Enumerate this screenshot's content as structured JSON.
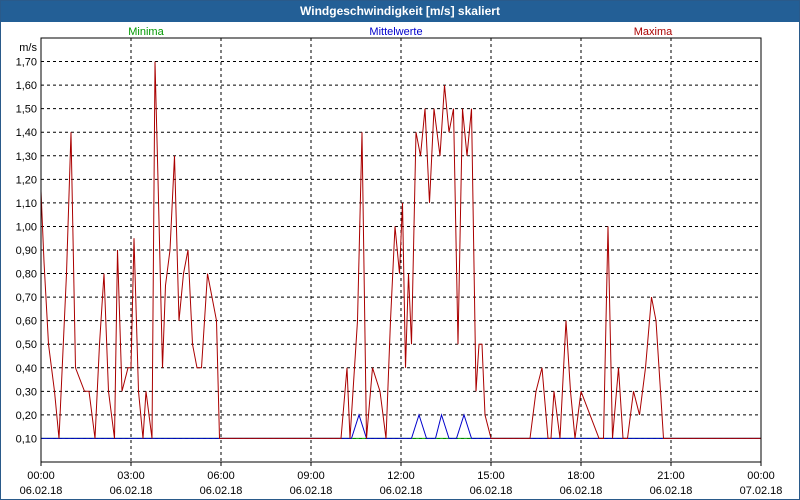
{
  "window": {
    "title": "Windgeschwindigkeit [m/s] skaliert"
  },
  "colors": {
    "minima": "#009900",
    "mittel": "#0000cc",
    "maxima": "#aa0000",
    "title_bar": "#235f96"
  },
  "chart_data": {
    "type": "line",
    "title": "Windgeschwindigkeit [m/s] skaliert",
    "ylabel": "m/s",
    "xlabel": "",
    "ylim": [
      0.0,
      1.8
    ],
    "xlim_hours": [
      0,
      24
    ],
    "yticks": [
      "0,10",
      "0,20",
      "0,30",
      "0,40",
      "0,50",
      "0,60",
      "0,70",
      "0,80",
      "0,90",
      "1,00",
      "1,10",
      "1,20",
      "1,30",
      "1,40",
      "1,50",
      "1,60",
      "1,70"
    ],
    "ytick_values": [
      0.1,
      0.2,
      0.3,
      0.4,
      0.5,
      0.6,
      0.7,
      0.8,
      0.9,
      1.0,
      1.1,
      1.2,
      1.3,
      1.4,
      1.5,
      1.6,
      1.7
    ],
    "xticks": [
      {
        "time": "00:00",
        "date": "06.02.18"
      },
      {
        "time": "03:00",
        "date": "06.02.18"
      },
      {
        "time": "06:00",
        "date": "06.02.18"
      },
      {
        "time": "09:00",
        "date": "06.02.18"
      },
      {
        "time": "12:00",
        "date": "06.02.18"
      },
      {
        "time": "15:00",
        "date": "06.02.18"
      },
      {
        "time": "18:00",
        "date": "06.02.18"
      },
      {
        "time": "21:00",
        "date": "06.02.18"
      },
      {
        "time": "00:00",
        "date": "07.02.18"
      }
    ],
    "xtick_hours": [
      0,
      3,
      6,
      9,
      12,
      15,
      18,
      21,
      24
    ],
    "grid": true,
    "legend_position": "top",
    "series": [
      {
        "name": "Minima",
        "color": "#009900",
        "x": [
          0,
          24
        ],
        "y": [
          0.1,
          0.1
        ]
      },
      {
        "name": "Mittelwerte",
        "color": "#0000cc",
        "x": [
          0,
          10.35,
          10.6,
          10.85,
          12.0,
          12.35,
          12.6,
          12.85,
          13.15,
          13.35,
          13.6,
          13.85,
          14.1,
          14.35,
          24
        ],
        "y": [
          0.1,
          0.1,
          0.2,
          0.1,
          0.1,
          0.1,
          0.2,
          0.1,
          0.1,
          0.2,
          0.1,
          0.1,
          0.2,
          0.1,
          0.1
        ]
      },
      {
        "name": "Maxima",
        "color": "#aa0000",
        "x": [
          0.0,
          0.1,
          0.25,
          0.45,
          0.6,
          0.85,
          1.0,
          1.15,
          1.45,
          1.6,
          1.8,
          1.95,
          2.1,
          2.25,
          2.45,
          2.55,
          2.7,
          2.9,
          3.0,
          3.1,
          3.25,
          3.4,
          3.5,
          3.6,
          3.7,
          3.8,
          3.9,
          4.05,
          4.15,
          4.3,
          4.45,
          4.6,
          4.75,
          4.9,
          5.05,
          5.2,
          5.35,
          5.55,
          5.7,
          5.85,
          5.95,
          6.0,
          10.0,
          10.2,
          10.3,
          10.4,
          10.55,
          10.7,
          10.85,
          11.05,
          11.3,
          11.5,
          11.65,
          11.8,
          11.95,
          12.05,
          12.15,
          12.25,
          12.35,
          12.5,
          12.65,
          12.8,
          12.95,
          13.1,
          13.3,
          13.45,
          13.6,
          13.75,
          13.9,
          14.05,
          14.2,
          14.35,
          14.5,
          14.6,
          14.7,
          14.8,
          15.0,
          16.3,
          16.5,
          16.7,
          16.9,
          17.0,
          17.1,
          17.3,
          17.5,
          17.65,
          17.8,
          18.0,
          18.6,
          18.75,
          18.9,
          19.05,
          19.25,
          19.4,
          19.55,
          19.75,
          19.95,
          20.15,
          20.35,
          20.5,
          20.75,
          24.0
        ],
        "y": [
          1.15,
          0.85,
          0.5,
          0.3,
          0.1,
          0.8,
          1.4,
          0.4,
          0.3,
          0.3,
          0.1,
          0.5,
          0.8,
          0.3,
          0.1,
          0.9,
          0.3,
          0.4,
          0.4,
          0.95,
          0.3,
          0.1,
          0.3,
          0.2,
          0.1,
          1.7,
          1.2,
          0.4,
          0.75,
          0.9,
          1.3,
          0.6,
          0.8,
          0.9,
          0.5,
          0.4,
          0.4,
          0.8,
          0.7,
          0.6,
          0.1,
          0.1,
          0.1,
          0.4,
          0.1,
          0.3,
          0.6,
          1.4,
          0.1,
          0.4,
          0.3,
          0.1,
          0.6,
          1.0,
          0.8,
          1.1,
          0.4,
          0.8,
          0.5,
          1.4,
          1.3,
          1.5,
          1.1,
          1.5,
          1.3,
          1.6,
          1.4,
          1.5,
          0.5,
          1.5,
          1.3,
          1.5,
          0.3,
          0.5,
          0.5,
          0.2,
          0.1,
          0.1,
          0.3,
          0.4,
          0.1,
          0.1,
          0.3,
          0.1,
          0.6,
          0.3,
          0.1,
          0.3,
          0.1,
          0.1,
          1.0,
          0.1,
          0.4,
          0.1,
          0.1,
          0.3,
          0.2,
          0.4,
          0.7,
          0.6,
          0.1,
          0.1
        ]
      }
    ]
  }
}
